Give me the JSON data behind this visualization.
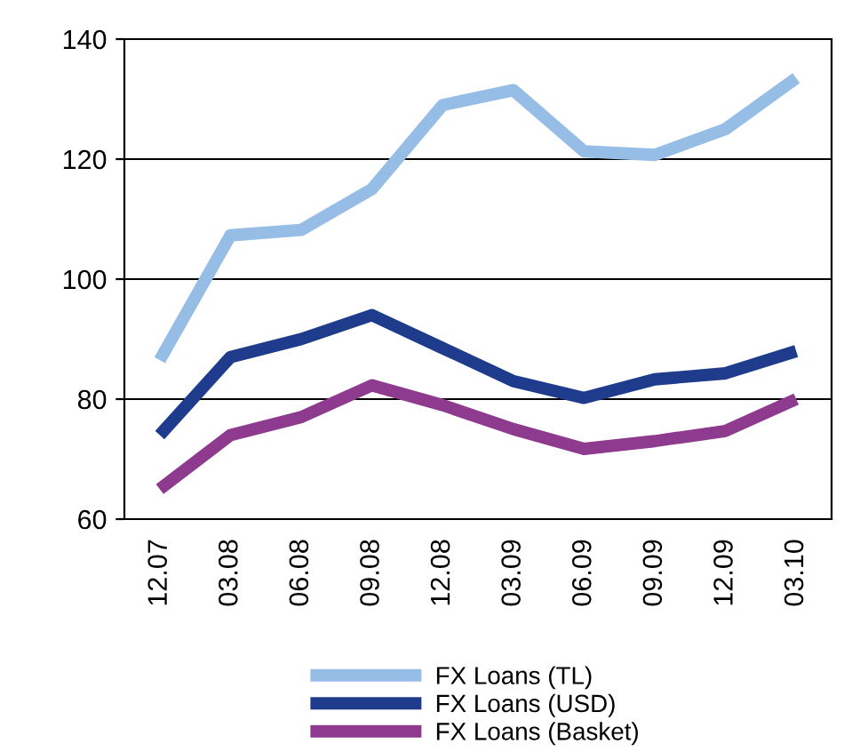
{
  "chart_data": {
    "type": "line",
    "categories": [
      "12.07",
      "03.08",
      "06.08",
      "09.08",
      "12.08",
      "03.09",
      "06.09",
      "09.09",
      "12.09",
      "03.10"
    ],
    "series": [
      {
        "name": "FX Loans (TL)",
        "color": "#95bde6",
        "values": [
          86.5,
          107.3,
          108.2,
          115,
          129,
          131.5,
          121.3,
          120.7,
          125,
          133.5
        ]
      },
      {
        "name": "FX Loans (USD)",
        "color": "#1f3b8c",
        "values": [
          74,
          87,
          90,
          94,
          88.5,
          83,
          80.2,
          83.3,
          84.3,
          88
        ]
      },
      {
        "name": "FX Loans (Basket)",
        "color": "#8e3a8e",
        "values": [
          65,
          74,
          77,
          82.3,
          79,
          75,
          71.7,
          73,
          74.7,
          80
        ]
      }
    ],
    "ylim": [
      60,
      140
    ],
    "yticks": [
      60,
      80,
      100,
      120,
      140
    ],
    "grid": "y",
    "legend": "bottom",
    "marker": "none",
    "line_style": "solid"
  }
}
